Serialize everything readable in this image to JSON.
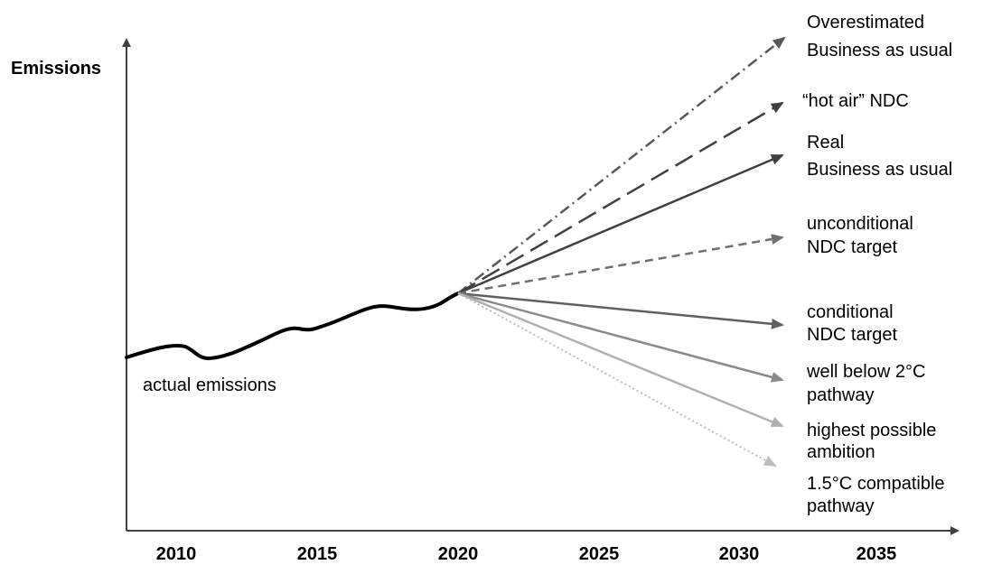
{
  "axes": {
    "y_label": "Emissions",
    "x_ticks": [
      "2010",
      "2015",
      "2020",
      "2025",
      "2030",
      "2035"
    ]
  },
  "history": {
    "label": "actual emissions",
    "color": "#000000"
  },
  "scenarios": [
    {
      "id": "overestimated-bau",
      "lines": [
        "Overestimated",
        "Business as usual"
      ],
      "color": "#595959",
      "style": "dashdot"
    },
    {
      "id": "hot-air-ndc",
      "lines": [
        "“hot air” NDC"
      ],
      "color": "#404040",
      "style": "longdash"
    },
    {
      "id": "real-bau",
      "lines": [
        "Real",
        "Business as usual"
      ],
      "color": "#404040",
      "style": "solid"
    },
    {
      "id": "unconditional-ndc",
      "lines": [
        "unconditional",
        "NDC target"
      ],
      "color": "#707070",
      "style": "dash"
    },
    {
      "id": "conditional-ndc",
      "lines": [
        "conditional",
        "NDC target"
      ],
      "color": "#606060",
      "style": "solid"
    },
    {
      "id": "well-below-2c",
      "lines": [
        "well below 2°C",
        "pathway"
      ],
      "color": "#8a8a8a",
      "style": "solid"
    },
    {
      "id": "highest-ambition",
      "lines": [
        "highest possible",
        "ambition"
      ],
      "color": "#b0b0b0",
      "style": "solid"
    },
    {
      "id": "one-point-five-c",
      "lines": [
        "1.5°C compatible",
        "pathway"
      ],
      "color": "#bdbdbd",
      "style": "dotted"
    }
  ]
}
